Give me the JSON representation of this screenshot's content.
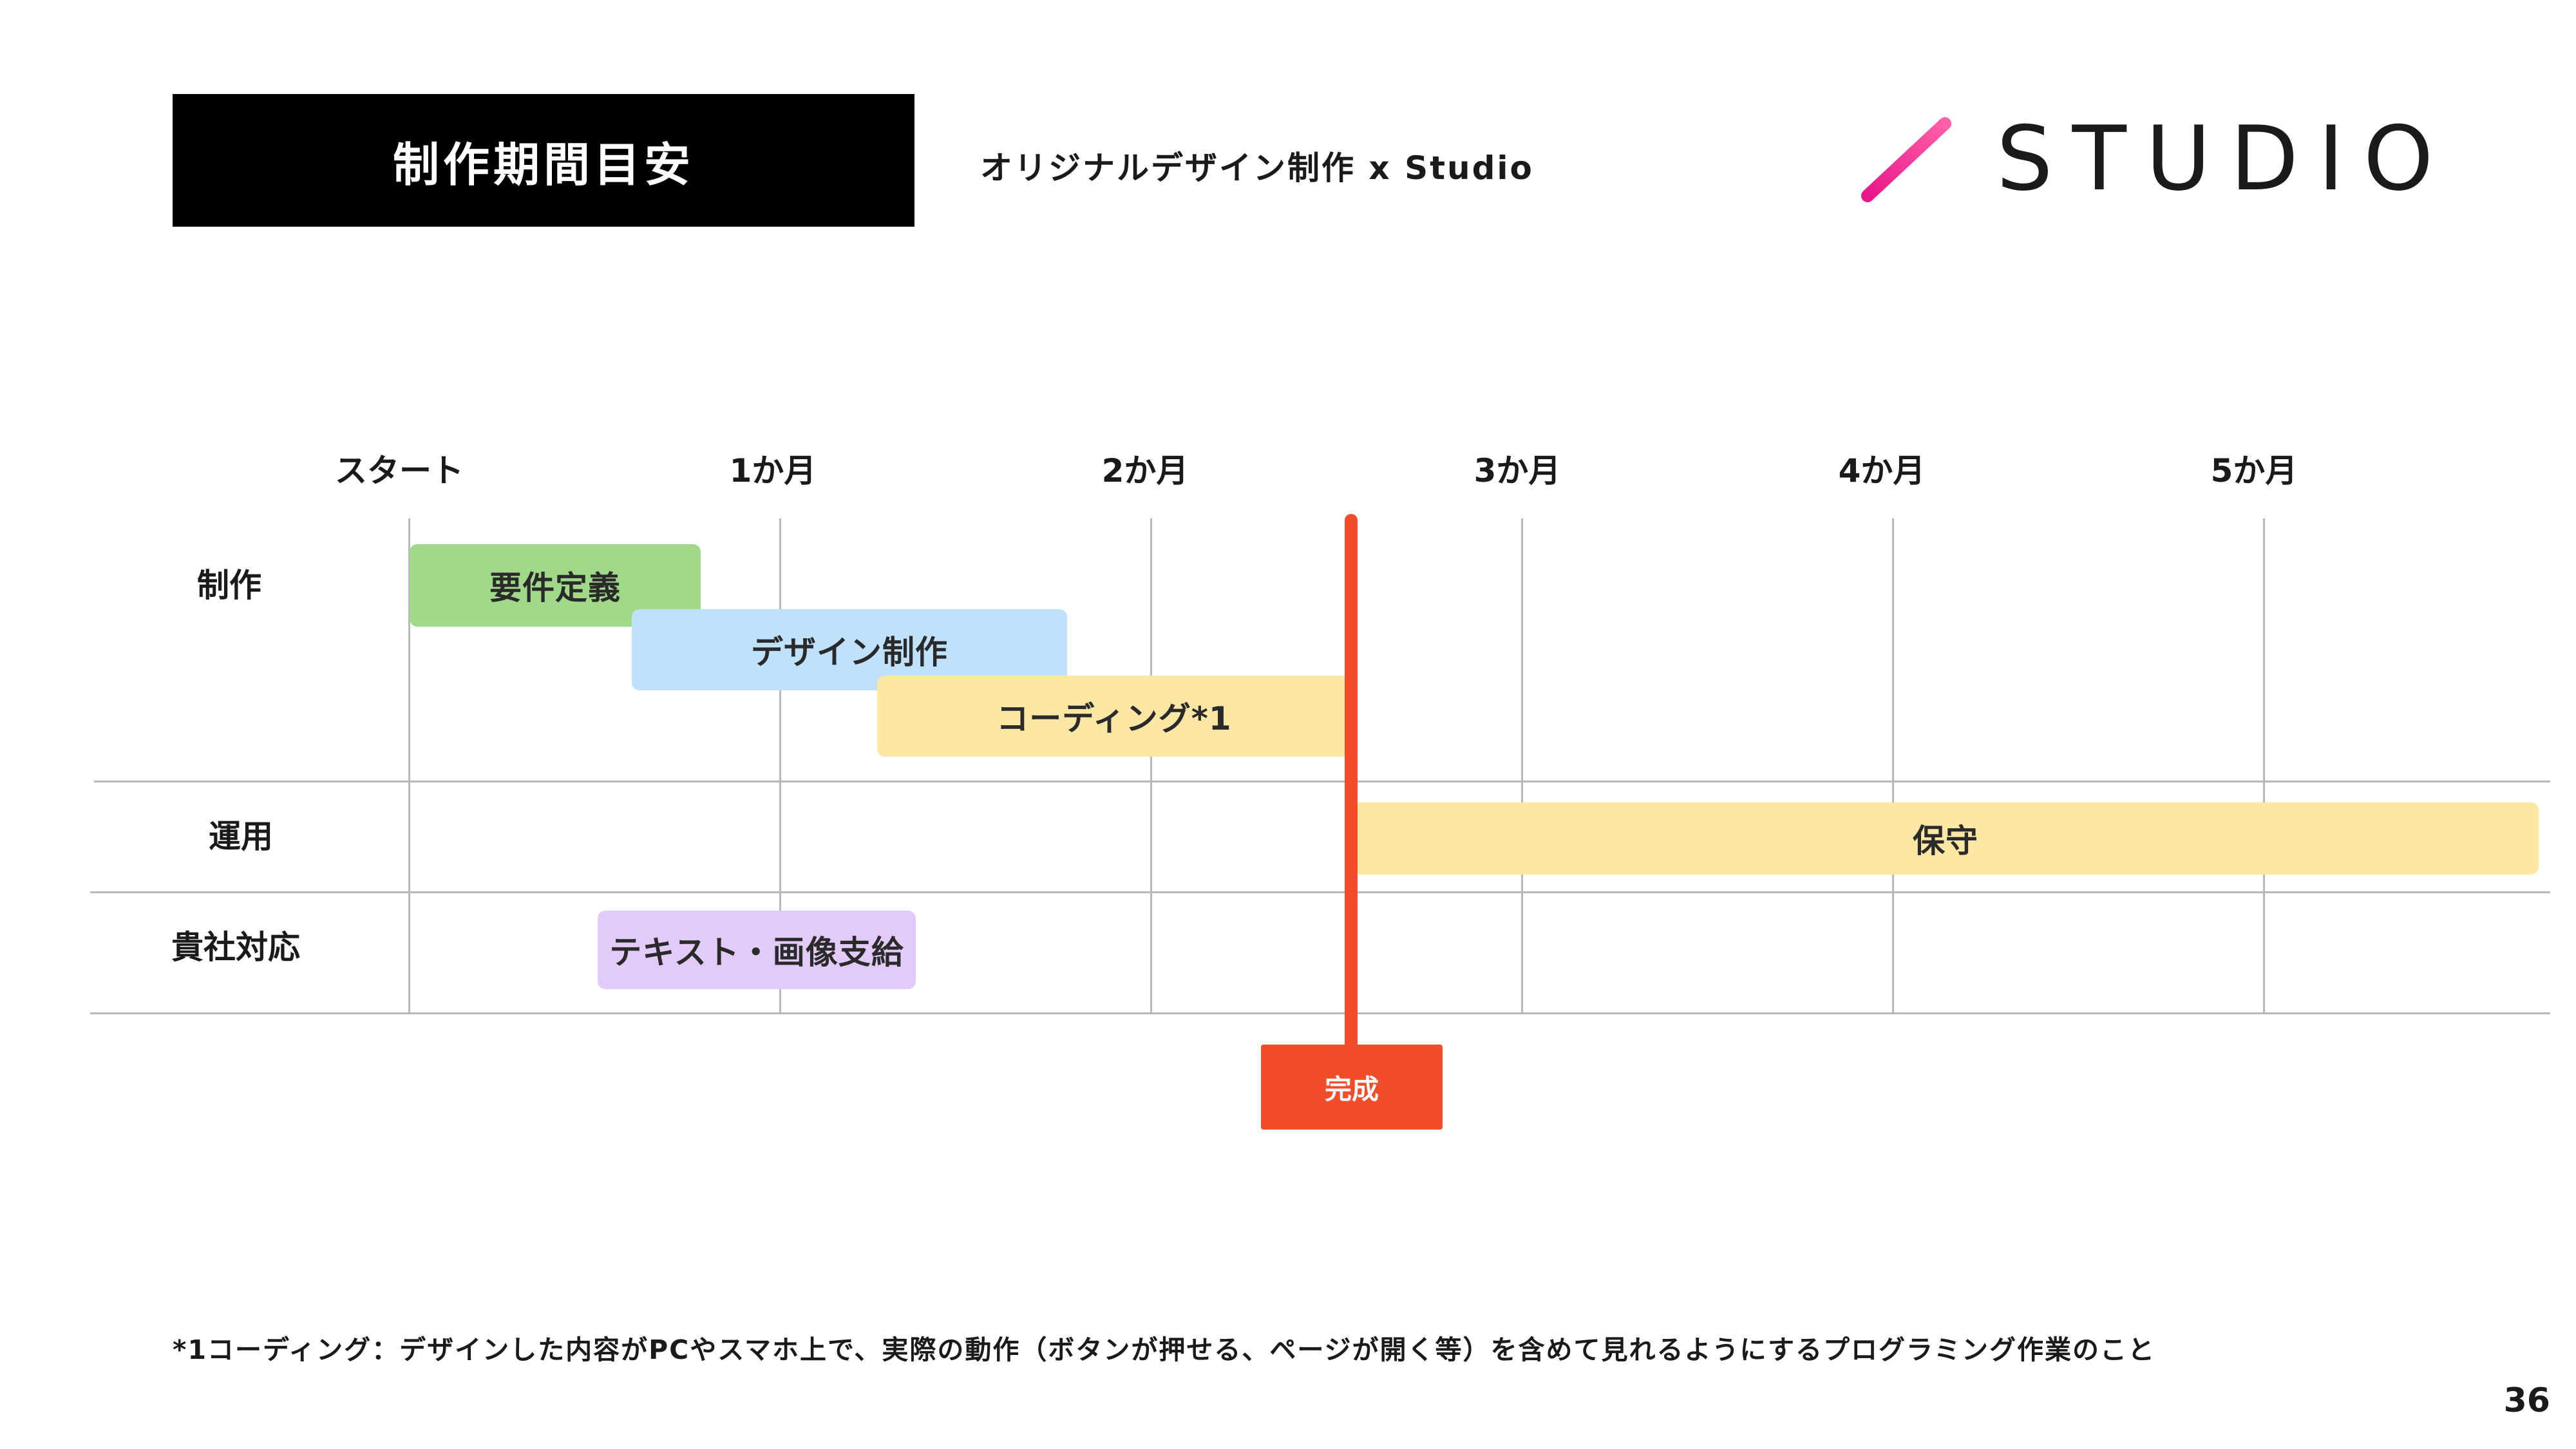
{
  "header": {
    "title": "制作期間目安",
    "subtitle": "オリジナルデザイン制作 x Studio",
    "logo_text": "STUDIO"
  },
  "timeline": {
    "columns": [
      "スタート",
      "1か月",
      "2か月",
      "3か月",
      "4か月",
      "5か月"
    ],
    "rows": [
      "制作",
      "運用",
      "貴社対応"
    ],
    "tasks": [
      {
        "label": "要件定義",
        "row": "制作",
        "color": "#a1d98a"
      },
      {
        "label": "デザイン制作",
        "row": "制作",
        "color": "#bfe1fb"
      },
      {
        "label": "コーディング*1",
        "row": "制作",
        "color": "#fde7a4"
      },
      {
        "label": "保守",
        "row": "運用",
        "color": "#fde7a4"
      },
      {
        "label": "テキスト・画像支給",
        "row": "貴社対応",
        "color": "#e2cbfb"
      }
    ],
    "milestone": {
      "label": "完成",
      "color": "#f24d2a"
    }
  },
  "footnote": "*1コーディング：デザインした内容がPCやスマホ上で、実際の動作（ボタンが押せる、ページが開く等）を含めて見れるようにするプログラミング作業のこと",
  "page_number": "36",
  "colors": {
    "accent": "#f24d2a",
    "logo_gradient_start": "#e8178a",
    "logo_gradient_end": "#ff5fa8"
  }
}
